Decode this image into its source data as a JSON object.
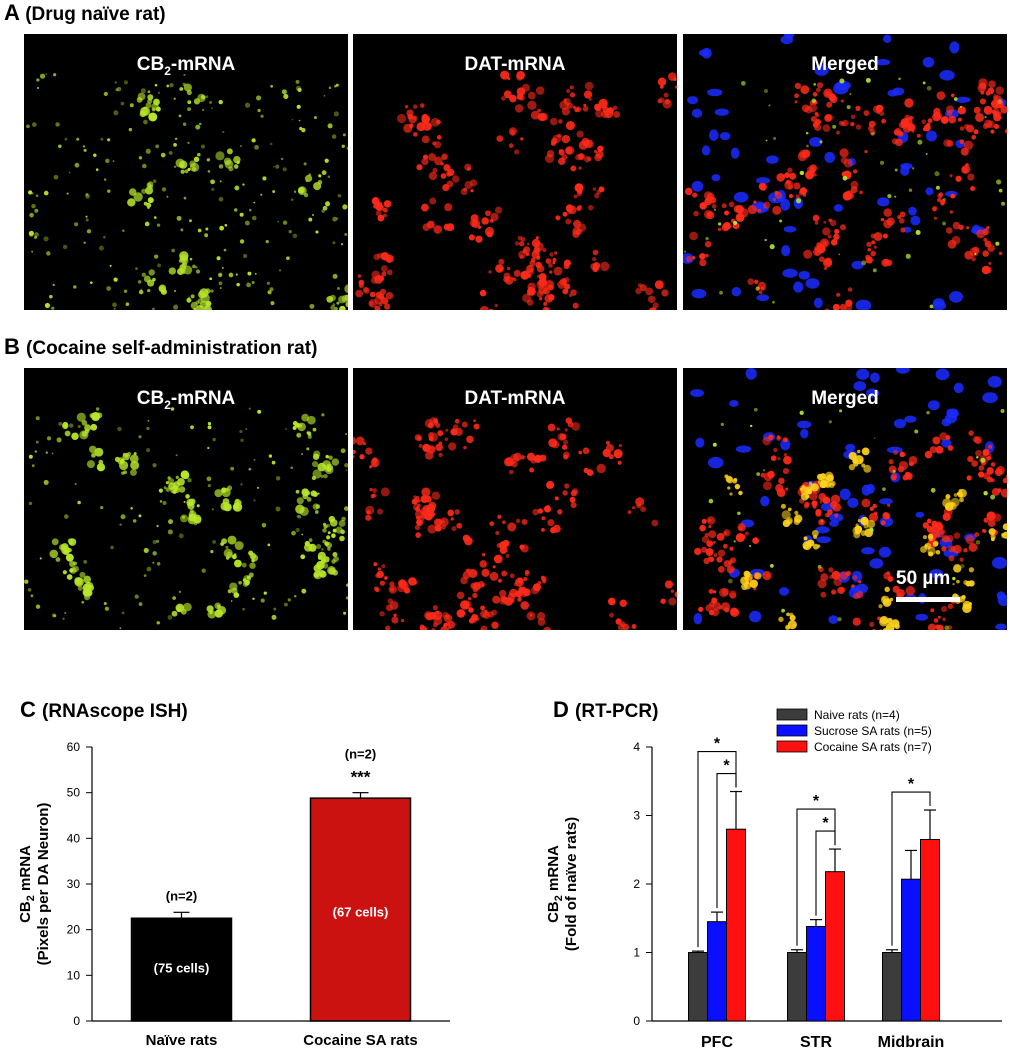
{
  "panel_a": {
    "letter": "A",
    "title": "(Drug naïve rat)",
    "images": [
      {
        "label_main": "CB",
        "label_sub": "2",
        "label_rest": "-mRNA",
        "kind": "cb2",
        "seed": 11
      },
      {
        "label_main": "DAT-mRNA",
        "label_sub": "",
        "label_rest": "",
        "kind": "dat",
        "seed": 23
      },
      {
        "label_main": "Merged",
        "label_sub": "",
        "label_rest": "",
        "kind": "merged-naive",
        "seed": 37
      }
    ]
  },
  "panel_b": {
    "letter": "B",
    "title": "(Cocaine self-administration  rat)",
    "images": [
      {
        "label_main": "CB",
        "label_sub": "2",
        "label_rest": "-mRNA",
        "kind": "cb2",
        "seed": 51
      },
      {
        "label_main": "DAT-mRNA",
        "label_sub": "",
        "label_rest": "",
        "kind": "dat",
        "seed": 63
      },
      {
        "label_main": "Merged",
        "label_sub": "",
        "label_rest": "",
        "kind": "merged-cocaine",
        "seed": 77
      }
    ],
    "scale_bar_label": "50 µm"
  },
  "panel_c": {
    "letter": "C",
    "title": "(RNAscope ISH)"
  },
  "panel_d": {
    "letter": "D",
    "title": "(RT-PCR)"
  },
  "colors": {
    "cb2_green": "#b8e62a",
    "dat_red": "#ff2a1a",
    "dapi_blue": "#1a2cff",
    "overlap_yellow": "#ffd21a",
    "bar_black": "#000000",
    "bar_red": "#cc1111",
    "naive_gray": "#3c3c3c",
    "sucrose_blue": "#0a10ff",
    "cocaine_red": "#ff1010"
  },
  "chart_data": [
    {
      "type": "bar",
      "panel": "C",
      "categories": [
        "Naïve rats",
        "Cocaine SA rats"
      ],
      "values": [
        22.5,
        48.8
      ],
      "errors": [
        1.3,
        1.2
      ],
      "bar_colors": [
        "#000000",
        "#cc1111"
      ],
      "bar_labels": [
        "(75 cells)",
        "(67 cells)"
      ],
      "n_labels": [
        "(n=2)",
        "(n=2)"
      ],
      "significance": [
        "",
        "***"
      ],
      "ylabel_line1_main": "CB",
      "ylabel_line1_sub": "2",
      "ylabel_line1_rest": " mRNA",
      "ylabel_line2": "(Pixels per DA Neuron)",
      "ylim": [
        0,
        60
      ],
      "yticks": [
        0,
        10,
        20,
        30,
        40,
        50,
        60
      ]
    },
    {
      "type": "bar",
      "panel": "D",
      "categories": [
        "PFC",
        "STR",
        "Midbrain"
      ],
      "series": [
        {
          "name": "Naive rats (n=4)",
          "values": [
            1.0,
            1.0,
            1.0
          ],
          "errors": [
            0.02,
            0.04,
            0.04
          ],
          "color": "#3c3c3c"
        },
        {
          "name": "Sucrose SA rats (n=5)",
          "values": [
            1.45,
            1.38,
            2.07
          ],
          "errors": [
            0.14,
            0.1,
            0.42
          ],
          "color": "#0a10ff"
        },
        {
          "name": "Cocaine SA rats (n=7)",
          "values": [
            2.8,
            2.18,
            2.65
          ],
          "errors": [
            0.55,
            0.33,
            0.43
          ],
          "color": "#ff1010"
        }
      ],
      "significance": [
        {
          "category": 0,
          "from_series": 0,
          "to_series": 2,
          "label": "*"
        },
        {
          "category": 0,
          "from_series": 1,
          "to_series": 2,
          "label": "*"
        },
        {
          "category": 1,
          "from_series": 0,
          "to_series": 2,
          "label": "*"
        },
        {
          "category": 1,
          "from_series": 1,
          "to_series": 2,
          "label": "*"
        },
        {
          "category": 2,
          "from_series": 0,
          "to_series": 2,
          "label": "*"
        }
      ],
      "ylabel_line1_main": "CB",
      "ylabel_line1_sub": "2",
      "ylabel_line1_rest": " mRNA",
      "ylabel_line2": "(Fold of naïve rats)",
      "ylim": [
        0,
        4
      ],
      "yticks": [
        0,
        1,
        2,
        3,
        4
      ],
      "legend_position": "top-right"
    }
  ]
}
